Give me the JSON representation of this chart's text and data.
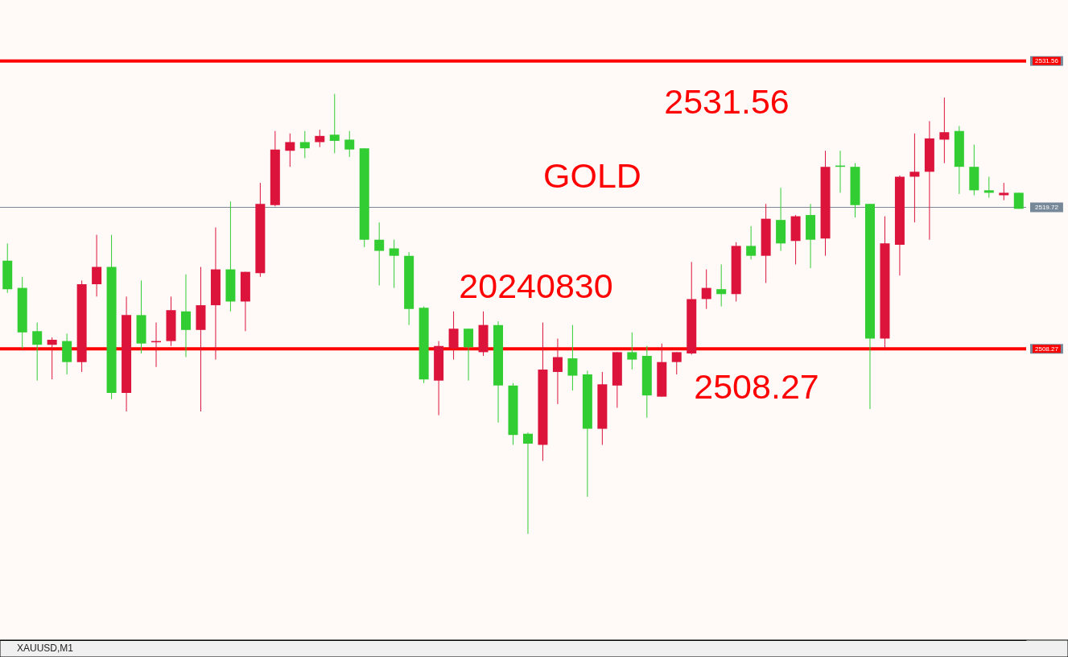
{
  "chart_data": {
    "type": "candlestick",
    "title": "GOLD",
    "subtitle": "20240830",
    "annotations": [
      "2531.56",
      "2508.27",
      "XAUUSD,M1"
    ],
    "categories": [
      null,
      null,
      null,
      null,
      null,
      null,
      null,
      null,
      null,
      null,
      null,
      null,
      null,
      null,
      null,
      null,
      null,
      null,
      null,
      null,
      null,
      null,
      null,
      null,
      null,
      null,
      null,
      null,
      null,
      null,
      null,
      null,
      null,
      null,
      null,
      null,
      null,
      null,
      null,
      null,
      null,
      null,
      null,
      null,
      null,
      null,
      null,
      null,
      null,
      null,
      null,
      null,
      null,
      null,
      null,
      null,
      null,
      null,
      null,
      null,
      null,
      null,
      null,
      null,
      null,
      null,
      null,
      null,
      null
    ],
    "ohlc": [
      [
        2515.4,
        2516.8,
        2512.8,
        2513.1
      ],
      [
        2513.2,
        2514.1,
        2508.3,
        2509.6
      ],
      [
        2509.7,
        2510.4,
        2505.7,
        2508.6
      ],
      [
        2508.6,
        2509.2,
        2505.8,
        2509.0
      ],
      [
        2508.9,
        2509.5,
        2506.2,
        2507.2
      ],
      [
        2507.2,
        2513.8,
        2506.4,
        2513.5
      ],
      [
        2513.5,
        2517.5,
        2512.5,
        2514.9
      ],
      [
        2514.9,
        2517.5,
        2504.2,
        2504.7
      ],
      [
        2504.7,
        2512.5,
        2503.2,
        2511.0
      ],
      [
        2511.0,
        2513.8,
        2507.9,
        2508.7
      ],
      [
        2508.8,
        2510.4,
        2506.8,
        2508.9
      ],
      [
        2508.9,
        2512.5,
        2508.5,
        2511.4
      ],
      [
        2511.3,
        2514.3,
        2507.6,
        2509.8
      ],
      [
        2509.8,
        2514.9,
        2503.2,
        2511.8
      ],
      [
        2511.8,
        2518.1,
        2507.4,
        2514.7
      ],
      [
        2514.7,
        2520.2,
        2511.3,
        2512.1
      ],
      [
        2512.1,
        2514.5,
        2509.7,
        2514.5
      ],
      [
        2514.4,
        2521.7,
        2514.1,
        2520.0
      ],
      [
        2519.9,
        2525.9,
        2519.8,
        2524.4
      ],
      [
        2524.3,
        2525.7,
        2523.0,
        2525.0
      ],
      [
        2525.0,
        2525.9,
        2523.7,
        2524.5
      ],
      [
        2525.0,
        2526.0,
        2524.6,
        2525.5
      ],
      [
        2525.6,
        2528.9,
        2524.1,
        2525.1
      ],
      [
        2525.2,
        2525.9,
        2523.8,
        2524.4
      ],
      [
        2524.5,
        2524.5,
        2516.5,
        2517.1
      ],
      [
        2517.1,
        2518.5,
        2513.4,
        2516.2
      ],
      [
        2516.4,
        2517.1,
        2513.2,
        2515.8
      ],
      [
        2515.8,
        2516.1,
        2510.2,
        2511.5
      ],
      [
        2511.6,
        2511.7,
        2505.5,
        2505.8
      ],
      [
        2505.7,
        2508.9,
        2502.9,
        2508.5
      ],
      [
        2508.3,
        2511.3,
        2507.4,
        2509.9
      ],
      [
        2509.9,
        2509.9,
        2505.7,
        2508.4
      ],
      [
        2508.0,
        2511.3,
        2507.7,
        2510.2
      ],
      [
        2510.2,
        2510.5,
        2502.3,
        2505.3
      ],
      [
        2505.3,
        2505.5,
        2500.5,
        2501.3
      ],
      [
        2501.4,
        2501.5,
        2493.3,
        2500.6
      ],
      [
        2500.5,
        2510.4,
        2499.2,
        2506.6
      ],
      [
        2506.4,
        2509.1,
        2503.8,
        2507.6
      ],
      [
        2507.5,
        2510.2,
        2504.9,
        2506.1
      ],
      [
        2506.2,
        2506.5,
        2496.3,
        2501.8
      ],
      [
        2501.8,
        2506.4,
        2500.5,
        2505.4
      ],
      [
        2505.3,
        2508.0,
        2503.5,
        2508.0
      ],
      [
        2508.0,
        2509.6,
        2506.6,
        2507.4
      ],
      [
        2507.7,
        2508.5,
        2502.7,
        2504.5
      ],
      [
        2504.4,
        2508.7,
        2504.4,
        2507.2
      ],
      [
        2507.2,
        2508.0,
        2506.2,
        2508.0
      ],
      [
        2507.9,
        2515.3,
        2507.8,
        2512.3
      ],
      [
        2512.3,
        2514.7,
        2511.5,
        2513.2
      ],
      [
        2513.1,
        2515.1,
        2511.7,
        2512.7
      ],
      [
        2512.7,
        2516.9,
        2512.1,
        2516.6
      ],
      [
        2516.6,
        2518.2,
        2515.5,
        2515.8
      ],
      [
        2515.8,
        2520.0,
        2513.6,
        2518.8
      ],
      [
        2518.7,
        2521.3,
        2516.2,
        2516.8
      ],
      [
        2517.0,
        2519.1,
        2515.1,
        2519.0
      ],
      [
        2519.1,
        2520.0,
        2514.8,
        2517.1
      ],
      [
        2517.2,
        2524.3,
        2515.8,
        2523.0
      ],
      [
        2523.1,
        2524.3,
        2520.9,
        2523.0
      ],
      [
        2523.0,
        2523.3,
        2518.9,
        2519.9
      ],
      [
        2520.0,
        2520.0,
        2503.4,
        2509.1
      ],
      [
        2509.1,
        2519.0,
        2508.3,
        2516.8
      ],
      [
        2516.7,
        2522.3,
        2514.2,
        2522.2
      ],
      [
        2522.2,
        2525.7,
        2518.5,
        2522.6
      ],
      [
        2522.6,
        2526.7,
        2517.1,
        2525.3
      ],
      [
        2525.2,
        2528.6,
        2523.3,
        2525.8
      ],
      [
        2525.9,
        2526.3,
        2520.8,
        2523.0
      ],
      [
        2523.0,
        2524.8,
        2520.7,
        2521.1
      ],
      [
        2521.1,
        2522.2,
        2520.5,
        2520.9
      ],
      [
        2520.7,
        2521.7,
        2520.3,
        2520.9
      ],
      [
        2520.9,
        2520.9,
        2519.6,
        2519.6
      ]
    ],
    "colors": [
      "#32cd32",
      "#32cd32",
      "#32cd32",
      "#dc143c",
      "#32cd32",
      "#dc143c",
      "#dc143c",
      "#32cd32",
      "#dc143c",
      "#32cd32",
      "#dc143c",
      "#dc143c",
      "#32cd32",
      "#dc143c",
      "#dc143c",
      "#32cd32",
      "#dc143c",
      "#dc143c",
      "#dc143c",
      "#dc143c",
      "#32cd32",
      "#dc143c",
      "#32cd32",
      "#32cd32",
      "#32cd32",
      "#32cd32",
      "#32cd32",
      "#32cd32",
      "#32cd32",
      "#dc143c",
      "#dc143c",
      "#32cd32",
      "#dc143c",
      "#32cd32",
      "#32cd32",
      "#32cd32",
      "#dc143c",
      "#dc143c",
      "#32cd32",
      "#32cd32",
      "#dc143c",
      "#dc143c",
      "#32cd32",
      "#32cd32",
      "#dc143c",
      "#dc143c",
      "#dc143c",
      "#dc143c",
      "#32cd32",
      "#dc143c",
      "#32cd32",
      "#dc143c",
      "#32cd32",
      "#dc143c",
      "#32cd32",
      "#dc143c",
      "#32cd32",
      "#32cd32",
      "#32cd32",
      "#dc143c",
      "#dc143c",
      "#dc143c",
      "#dc143c",
      "#dc143c",
      "#32cd32",
      "#32cd32",
      "#32cd32",
      "#dc143c",
      "#32cd32"
    ],
    "ylim": [
      2484.7,
      2536.5
    ],
    "yticks": [
      2508.27,
      2519.72,
      2531.56
    ],
    "ref_lines": [
      {
        "axis": "y",
        "value": 2531.56,
        "color": "#ff0000",
        "line_style": "solid"
      },
      {
        "axis": "y",
        "value": 2519.72,
        "color": "#778899",
        "line_style": "solid"
      },
      {
        "axis": "y",
        "value": 2508.27,
        "color": "#ff0000",
        "line_style": "solid"
      }
    ]
  }
}
